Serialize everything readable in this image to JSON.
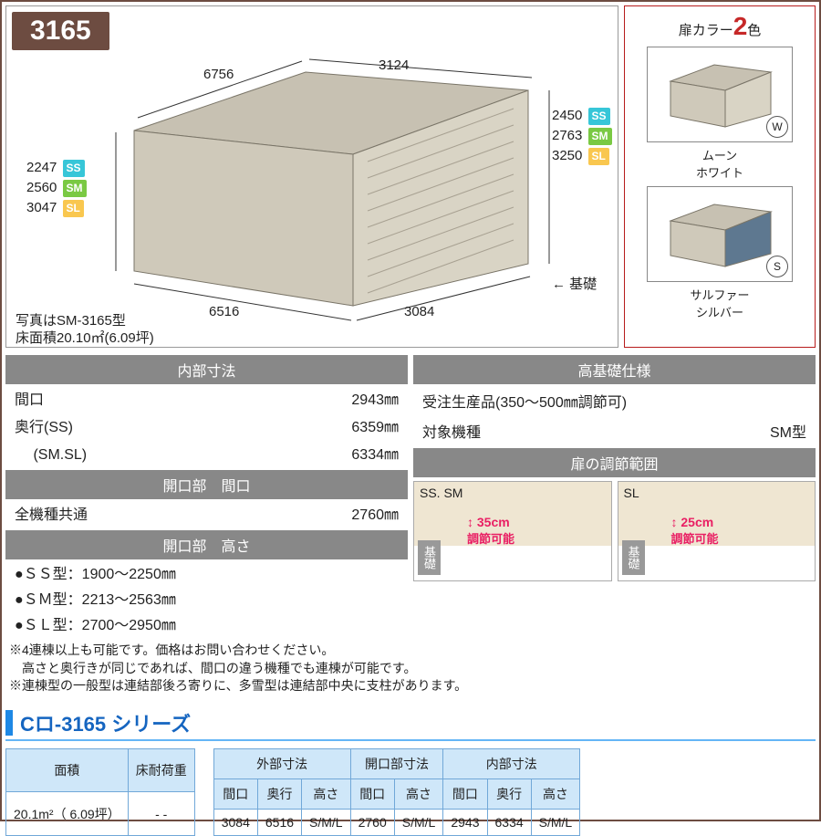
{
  "model": "3165",
  "diagram": {
    "top_width": "3124",
    "top_depth": "6756",
    "bottom_depth": "6516",
    "bottom_width": "3084",
    "left_heights": [
      {
        "val": "2247",
        "tag": "SS",
        "color": "#37c6d8"
      },
      {
        "val": "2560",
        "tag": "SM",
        "color": "#7ac943"
      },
      {
        "val": "3047",
        "tag": "SL",
        "color": "#f9c74f"
      }
    ],
    "right_heights": [
      {
        "val": "2450",
        "tag": "SS",
        "color": "#37c6d8"
      },
      {
        "val": "2763",
        "tag": "SM",
        "color": "#7ac943"
      },
      {
        "val": "3250",
        "tag": "SL",
        "color": "#f9c74f"
      }
    ],
    "foundation_label": "基礎",
    "caption1": "写真はSM-3165型",
    "caption2": "床面積20.10㎡(6.09坪)"
  },
  "colors": {
    "title_pre": "扉カラー",
    "title_num": "2",
    "title_post": "色",
    "swatches": [
      {
        "name": "ムーン\nホワイト",
        "code": "W",
        "door": "#d9d4c5"
      },
      {
        "name": "サルファー\nシルバー",
        "code": "S",
        "door": "#5e7890"
      }
    ]
  },
  "sections": {
    "inner_dims": {
      "title": "内部寸法",
      "rows": [
        {
          "k": "間口",
          "v": "2943㎜"
        },
        {
          "k": "奥行(SS)",
          "v": "6359㎜"
        },
        {
          "k": "　 (SM.SL)",
          "v": "6334㎜"
        }
      ]
    },
    "opening_width": {
      "title": "開口部　間口",
      "row": {
        "k": "全機種共通",
        "v": "2760㎜"
      }
    },
    "opening_height": {
      "title": "開口部　高さ",
      "bullets": [
        "●ＳＳ型：1900～2250㎜",
        "●ＳＭ型：2213～2563㎜",
        "●ＳＬ型：2700～2950㎜"
      ]
    },
    "high_base": {
      "title": "高基礎仕様",
      "line1": "受注生産品(350～500㎜調節可)",
      "line2k": "対象機種",
      "line2v": "SM型"
    },
    "adjust": {
      "title": "扉の調節範囲",
      "left": {
        "label": "SS. SM",
        "val": "35cm",
        "sub": "調節可能"
      },
      "right": {
        "label": "SL",
        "val": "25cm",
        "sub": "調節可能"
      },
      "foundation": "基礎"
    }
  },
  "notes": [
    "※4連棟以上も可能です。価格はお問い合わせください。",
    "　高さと奥行きが同じであれば、間口の違う機種でも連棟が可能です。",
    "※連棟型の一般型は連結部後ろ寄りに、多雪型は連結部中央に支柱があります。"
  ],
  "series": {
    "title": "Cロ-3165 シリーズ"
  },
  "table_left": {
    "h1": "面積",
    "h2": "床耐荷重",
    "v1": "20.1m²（ 6.09坪）",
    "v2": "- -"
  },
  "table_right": {
    "groups": [
      "外部寸法",
      "開口部寸法",
      "内部寸法"
    ],
    "subheads": [
      "間口",
      "奥行",
      "高さ",
      "間口",
      "高さ",
      "間口",
      "奥行",
      "高さ"
    ],
    "values": [
      "3084",
      "6516",
      "S/M/L",
      "2760",
      "S/M/L",
      "2943",
      "6334",
      "S/M/L"
    ]
  }
}
